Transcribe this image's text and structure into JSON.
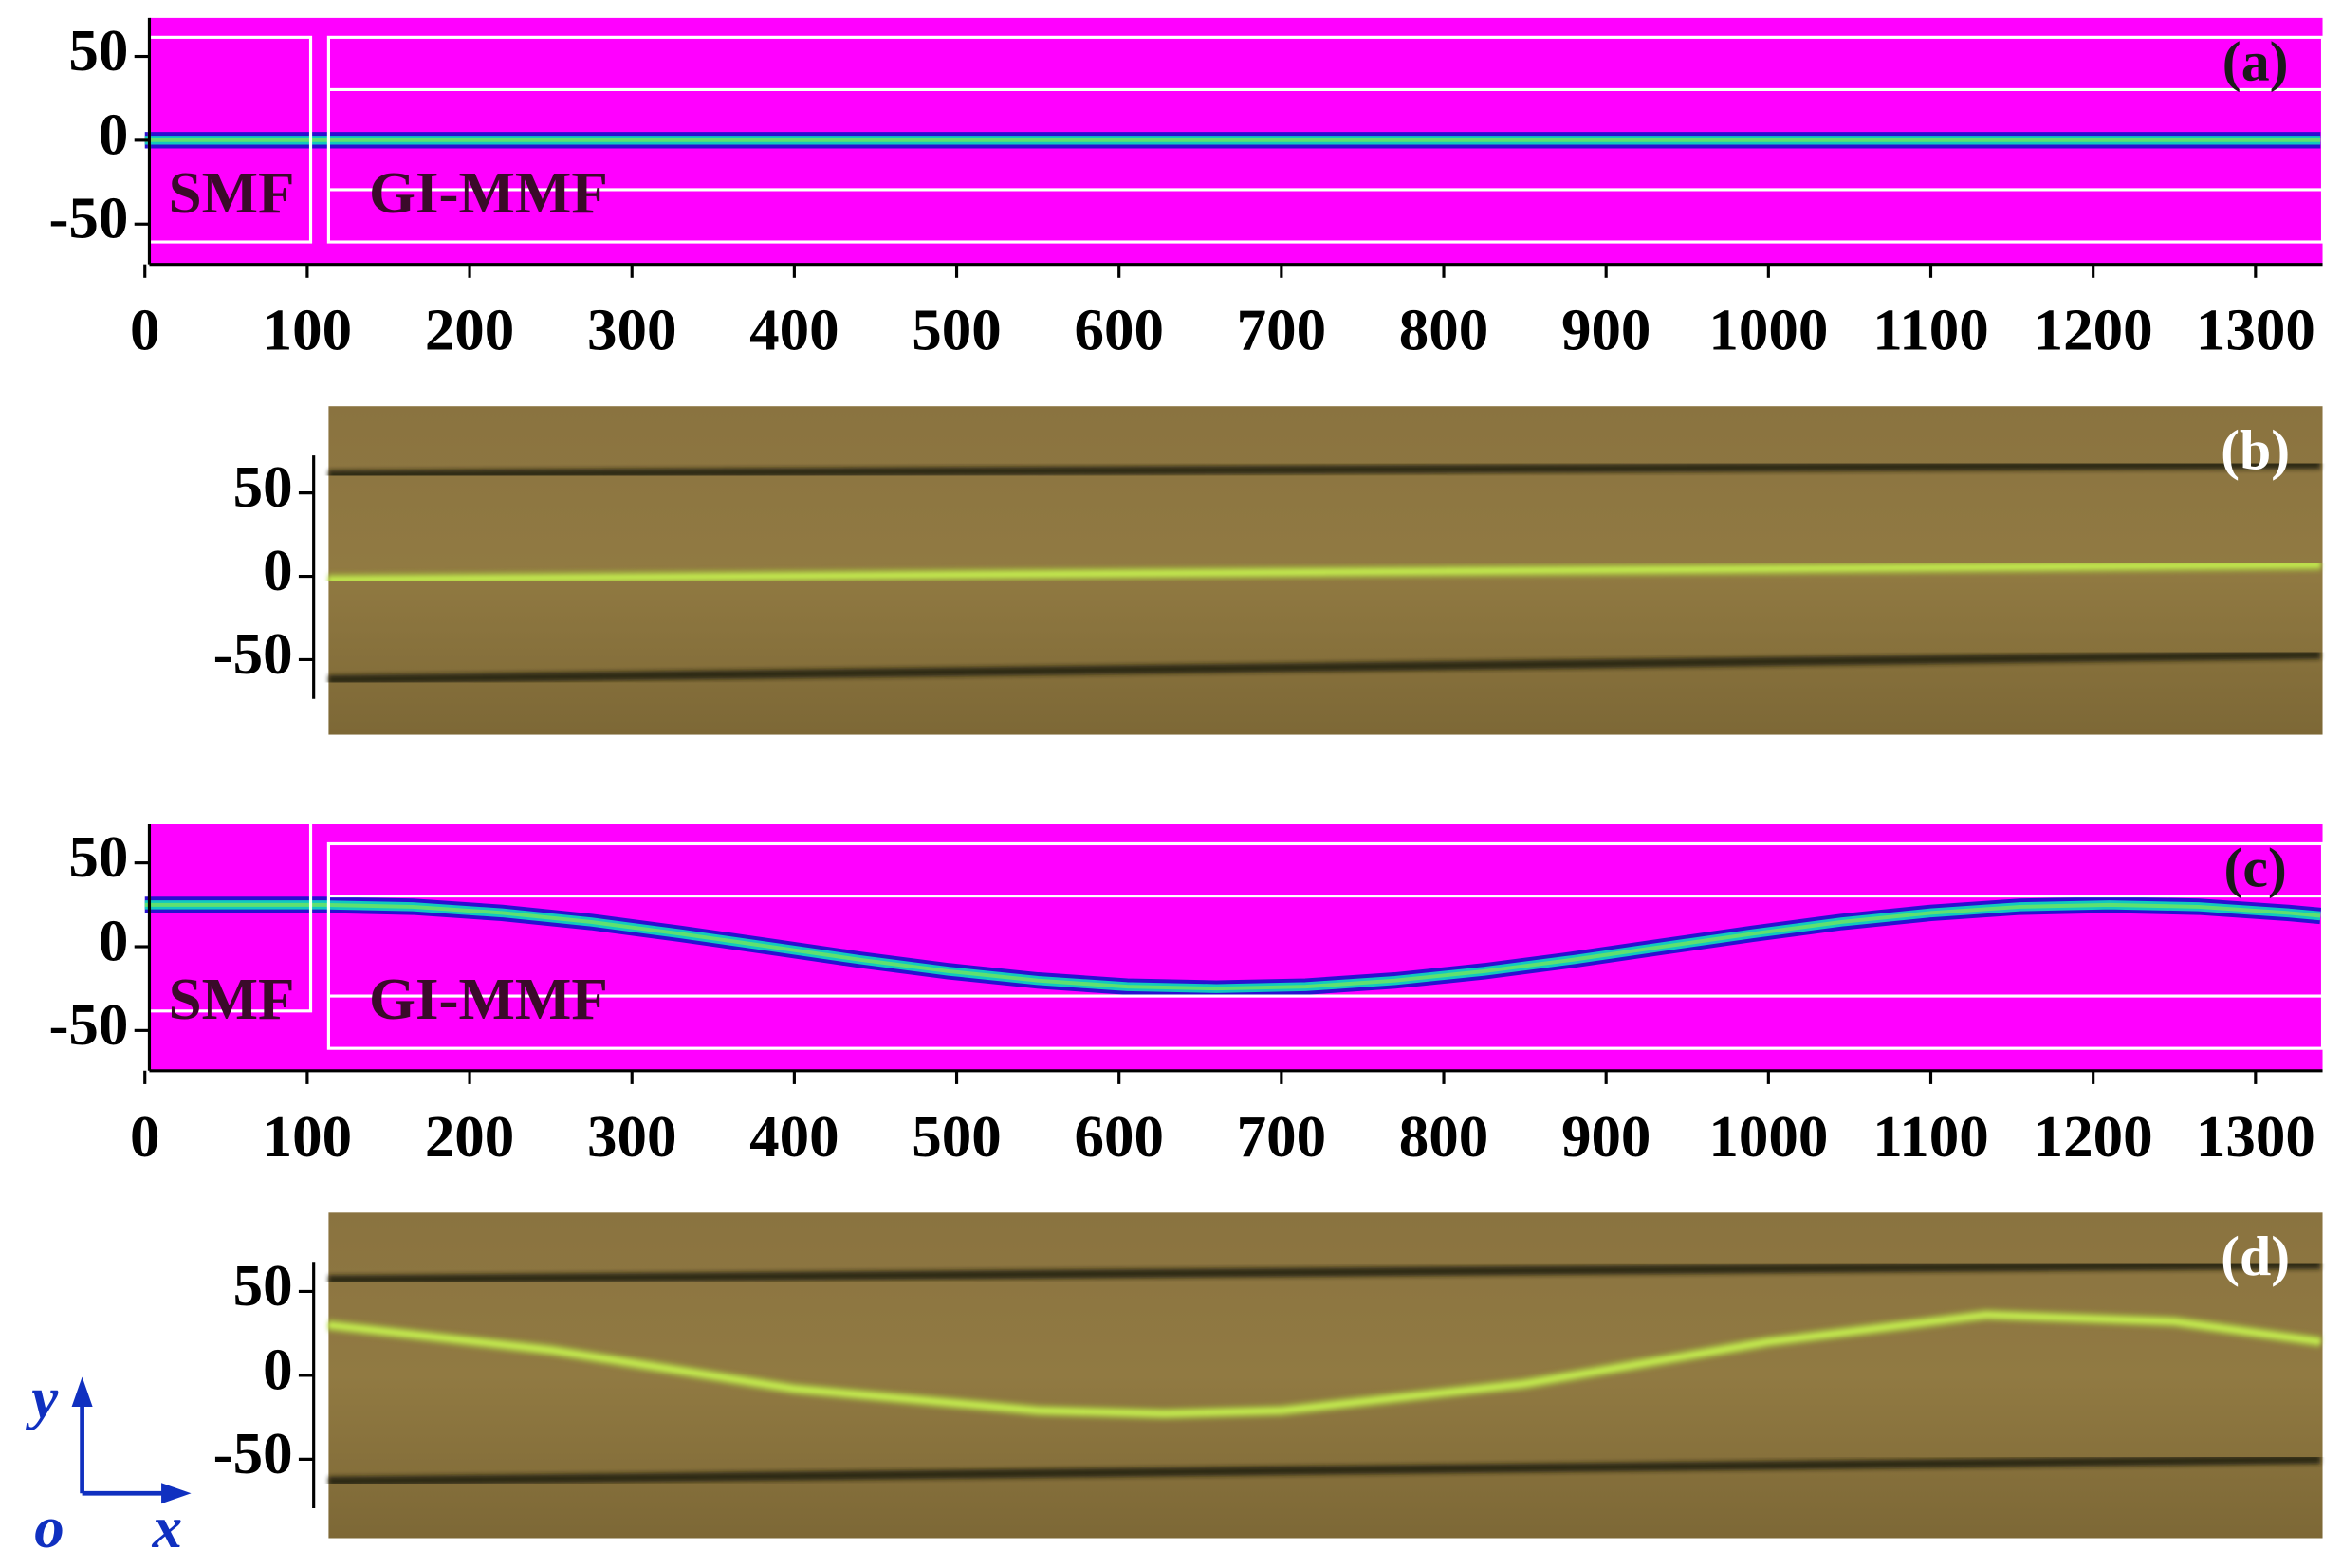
{
  "chart_data": [
    {
      "type": "field",
      "panel_label": "(a)",
      "annotations": [
        "SMF",
        "GI-MMF"
      ],
      "xlim": [
        0,
        1340
      ],
      "xticks": [
        0,
        100,
        200,
        300,
        400,
        500,
        600,
        700,
        800,
        900,
        1000,
        1100,
        1200,
        1300
      ],
      "ylim": [
        -74,
        73
      ],
      "yticks": [
        -50,
        0,
        50
      ],
      "beam": {
        "x": [
          0,
          110,
          1340
        ],
        "values": [
          0,
          0,
          0
        ]
      }
    },
    {
      "type": "micrograph",
      "panel_label": "(b)",
      "xlim": [
        113,
        1340
      ],
      "ylim": [
        -95,
        102
      ],
      "yticks": [
        -50,
        0,
        50
      ],
      "cladding": [
        {
          "x": [
            113,
            1340
          ],
          "values": [
            61,
            67
          ]
        },
        {
          "x": [
            113,
            1340
          ],
          "values": [
            -62,
            -47
          ]
        }
      ],
      "beam": {
        "x": [
          113,
          1340
        ],
        "values": [
          -2,
          7
        ]
      }
    },
    {
      "type": "field",
      "panel_label": "(c)",
      "annotations": [
        "SMF",
        "GI-MMF"
      ],
      "xlim": [
        0,
        1340
      ],
      "xticks": [
        0,
        100,
        200,
        300,
        400,
        500,
        600,
        700,
        800,
        900,
        1000,
        1100,
        1200,
        1300
      ],
      "ylim": [
        -74,
        73
      ],
      "yticks": [
        -50,
        0,
        50
      ],
      "beam": {
        "x": [
          0,
          110,
          165,
          220,
          275,
          330,
          385,
          440,
          495,
          550,
          605,
          660,
          715,
          770,
          825,
          880,
          935,
          990,
          1045,
          1100,
          1155,
          1210,
          1265,
          1320,
          1340
        ],
        "values": [
          25,
          25,
          23.8,
          20.2,
          14.7,
          7.7,
          0,
          -7.7,
          -14.7,
          -20.2,
          -23.8,
          -25,
          -23.8,
          -20.2,
          -14.7,
          -7.7,
          0,
          7.7,
          14.7,
          20.2,
          23.8,
          25,
          23.8,
          20.2,
          18.4
        ]
      }
    },
    {
      "type": "micrograph",
      "panel_label": "(d)",
      "xlim": [
        113,
        1340
      ],
      "ylim": [
        -97,
        97
      ],
      "yticks": [
        -50,
        0,
        50
      ],
      "cladding": [
        {
          "x": [
            113,
            1340
          ],
          "values": [
            57,
            66
          ]
        },
        {
          "x": [
            113,
            1340
          ],
          "values": [
            -63,
            -50
          ]
        }
      ],
      "beam": {
        "x": [
          113,
          250,
          400,
          550,
          628,
          700,
          850,
          1000,
          1134,
          1250,
          1340
        ],
        "values": [
          30,
          15,
          -8,
          -21,
          -23,
          -21,
          -5,
          20,
          36,
          32,
          20
        ]
      }
    }
  ],
  "axes_icon": {
    "y": "y",
    "x": "x",
    "origin": "o"
  }
}
